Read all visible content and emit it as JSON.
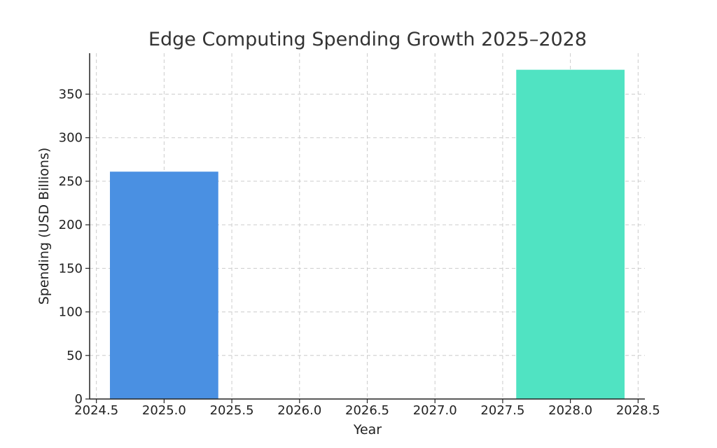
{
  "chart_data": {
    "type": "bar",
    "title": "Edge Computing Spending Growth 2025–2028",
    "xlabel": "Year",
    "ylabel": "Spending (USD Billions)",
    "x": [
      2025,
      2028
    ],
    "values": [
      261,
      378
    ],
    "bar_width": 0.8,
    "colors": [
      "#4a90e2",
      "#50e3c2"
    ],
    "xlim": [
      2024.45,
      2028.55
    ],
    "ylim": [
      0,
      397
    ],
    "x_ticks": [
      2024.5,
      2025.0,
      2025.5,
      2026.0,
      2026.5,
      2027.0,
      2027.5,
      2028.0,
      2028.5
    ],
    "x_tick_labels": [
      "2024.5",
      "2025.0",
      "2025.5",
      "2026.0",
      "2026.5",
      "2027.0",
      "2027.5",
      "2028.0",
      "2028.5"
    ],
    "y_ticks": [
      0,
      50,
      100,
      150,
      200,
      250,
      300,
      350
    ],
    "y_tick_labels": [
      "0",
      "50",
      "100",
      "150",
      "200",
      "250",
      "300",
      "350"
    ],
    "grid": true
  }
}
